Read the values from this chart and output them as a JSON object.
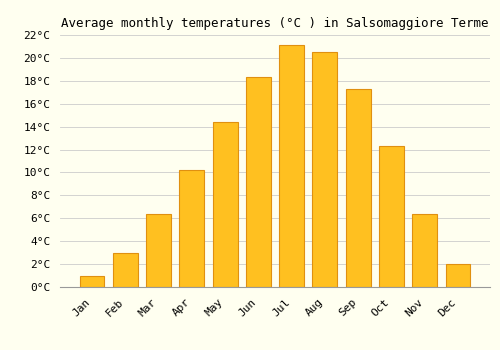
{
  "title": "Average monthly temperatures (°C ) in Salsomaggiore Terme",
  "months": [
    "Jan",
    "Feb",
    "Mar",
    "Apr",
    "May",
    "Jun",
    "Jul",
    "Aug",
    "Sep",
    "Oct",
    "Nov",
    "Dec"
  ],
  "values": [
    1.0,
    3.0,
    6.4,
    10.2,
    14.4,
    18.3,
    21.1,
    20.5,
    17.3,
    12.3,
    6.4,
    2.0
  ],
  "bar_color": "#FFC020",
  "bar_edge_color": "#E09010",
  "background_color": "#FFFFF0",
  "grid_color": "#CCCCCC",
  "ylim": [
    0,
    22
  ],
  "yticks": [
    0,
    2,
    4,
    6,
    8,
    10,
    12,
    14,
    16,
    18,
    20,
    22
  ],
  "title_fontsize": 9,
  "tick_fontsize": 8,
  "title_font": "monospace",
  "tick_font": "monospace"
}
